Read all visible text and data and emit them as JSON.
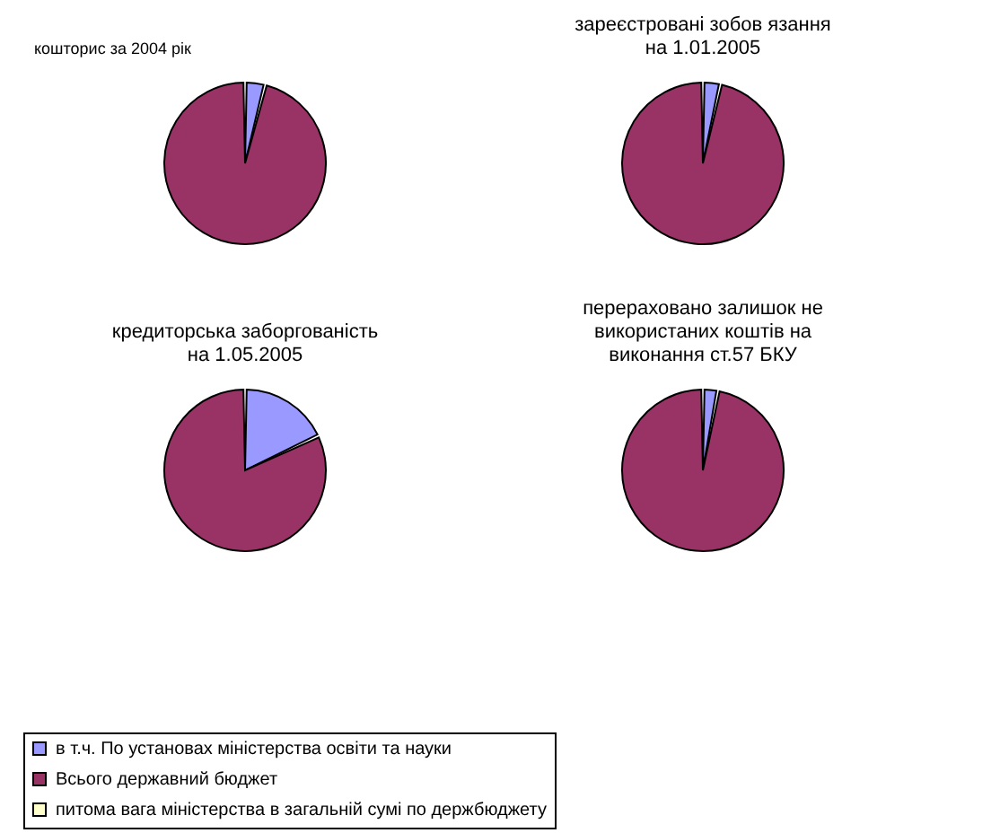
{
  "chart_data": [
    {
      "type": "pie",
      "title": "кошторис за 2004 рік",
      "categories": [
        "в т.ч. По установах міністерства освіти та науки",
        "Всього державний бюджет",
        "питома вага міністерства в загальній сумі по держбюджету"
      ],
      "values": [
        4,
        96,
        null
      ],
      "colors": [
        "#9999ff",
        "#993366",
        "#ffffcc"
      ],
      "legend": "bottom"
    },
    {
      "type": "pie",
      "title": "зареєстровані  зобов язання на 1.01.2005",
      "values": [
        3.5,
        96.5,
        null
      ],
      "colors": [
        "#9999ff",
        "#993366",
        "#ffffcc"
      ]
    },
    {
      "type": "pie",
      "title": "кредиторська заборгованість на 1.05.2005",
      "values": [
        18,
        82,
        null
      ],
      "colors": [
        "#9999ff",
        "#993366",
        "#ffffcc"
      ]
    },
    {
      "type": "pie",
      "title": "перераховано залишок не використаних коштів на виконання  ст.57 БКУ",
      "values": [
        3,
        97,
        null
      ],
      "colors": [
        "#9999ff",
        "#993366",
        "#ffffcc"
      ]
    }
  ]
}
